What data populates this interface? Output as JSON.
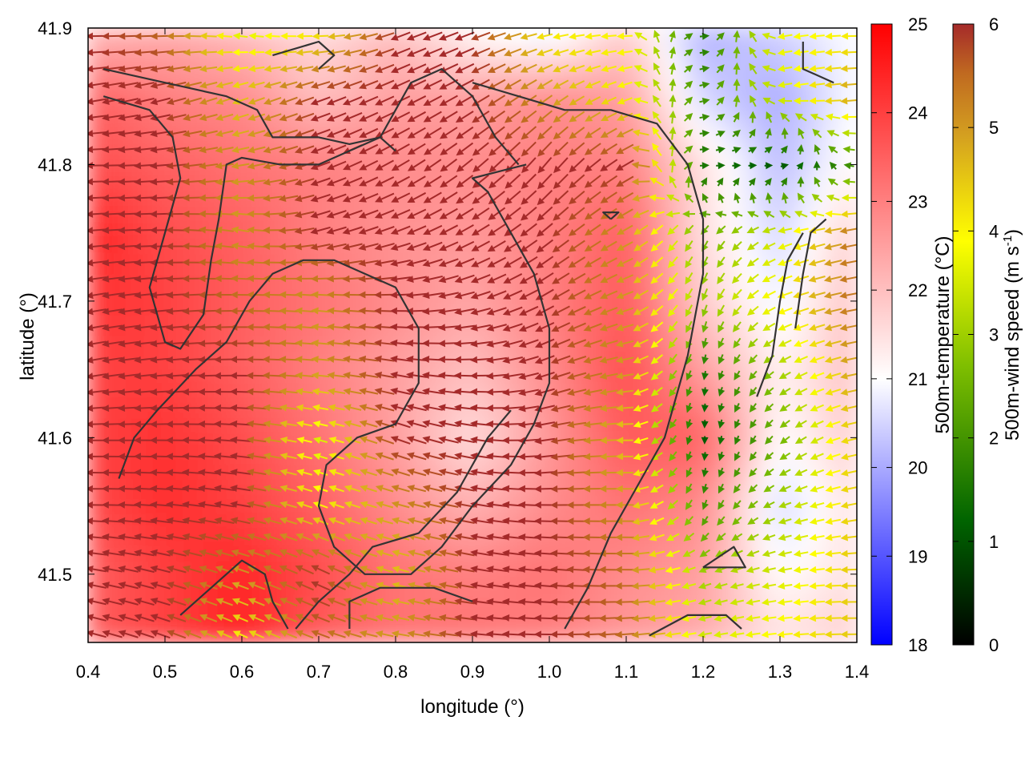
{
  "chart_data": {
    "type": "heatmap",
    "xlabel": "longitude (°)",
    "ylabel": "latitude (°)",
    "xlim": [
      0.4,
      1.4
    ],
    "ylim": [
      41.45,
      41.9
    ],
    "x_ticks": [
      "0.4",
      "0.5",
      "0.6",
      "0.7",
      "0.8",
      "0.9",
      "1.0",
      "1.1",
      "1.2",
      "1.3",
      "1.4"
    ],
    "y_ticks": [
      "41.5",
      "41.6",
      "41.7",
      "41.8",
      "41.9"
    ],
    "grid": false,
    "temperature_colorbar": {
      "label": "500m-temperature (°C)",
      "range": [
        18,
        25
      ],
      "ticks": [
        "18",
        "19",
        "20",
        "21",
        "22",
        "23",
        "24",
        "25"
      ],
      "colors": [
        "#0000ff",
        "#ffffff",
        "#ff0000"
      ]
    },
    "wind_colorbar": {
      "label_main": "500m-wind speed (m s",
      "label_sup": "-1",
      "label_end": ")",
      "range": [
        0,
        6
      ],
      "ticks": [
        "0",
        "1",
        "2",
        "3",
        "4",
        "5",
        "6"
      ],
      "colors": [
        "#000000",
        "#006400",
        "#7fbf00",
        "#ffff00",
        "#d4a020",
        "#c06a20",
        "#a52a2a"
      ]
    },
    "temperature_field": {
      "description_units": "°C",
      "x": [
        0.4,
        0.5,
        0.6,
        0.7,
        0.8,
        0.9,
        1.0,
        1.1,
        1.2,
        1.3,
        1.4
      ],
      "y": [
        41.9,
        41.85,
        41.8,
        41.75,
        41.7,
        41.65,
        41.6,
        41.55,
        41.5,
        41.45
      ],
      "values": [
        [
          22.0,
          22.3,
          22.0,
          21.5,
          22.0,
          21.0,
          20.5,
          21.8,
          20.0,
          20.5,
          21.0
        ],
        [
          23.5,
          23.0,
          22.8,
          22.0,
          22.5,
          22.5,
          22.8,
          22.5,
          20.5,
          20.0,
          21.0
        ],
        [
          23.8,
          23.5,
          23.2,
          23.0,
          22.8,
          22.8,
          23.0,
          23.0,
          21.5,
          20.2,
          21.2
        ],
        [
          24.5,
          23.8,
          23.5,
          23.0,
          22.7,
          22.6,
          23.0,
          23.5,
          21.5,
          20.5,
          21.8
        ],
        [
          24.2,
          24.0,
          23.5,
          23.2,
          22.8,
          22.4,
          23.0,
          23.6,
          21.8,
          20.8,
          22.0
        ],
        [
          24.0,
          24.0,
          23.5,
          23.0,
          22.5,
          22.0,
          22.8,
          23.8,
          22.5,
          21.2,
          22.0
        ],
        [
          24.0,
          24.2,
          23.8,
          23.2,
          22.5,
          21.5,
          22.6,
          23.6,
          23.5,
          21.0,
          21.8
        ],
        [
          23.8,
          24.3,
          24.0,
          23.5,
          22.8,
          22.2,
          22.8,
          23.2,
          22.8,
          20.5,
          21.5
        ],
        [
          23.5,
          24.0,
          24.4,
          23.8,
          23.2,
          23.0,
          23.2,
          22.8,
          22.5,
          21.0,
          21.5
        ],
        [
          23.5,
          24.0,
          24.5,
          23.5,
          23.2,
          23.2,
          23.0,
          22.6,
          22.3,
          21.5,
          21.8
        ]
      ]
    },
    "wind_field": {
      "description_units": "m s-1",
      "x": [
        0.4,
        0.5,
        0.6,
        0.7,
        0.8,
        0.9,
        1.0,
        1.1,
        1.2,
        1.3,
        1.4
      ],
      "y": [
        41.9,
        41.85,
        41.8,
        41.75,
        41.7,
        41.65,
        41.6,
        41.55,
        41.5,
        41.45
      ],
      "speed": [
        [
          6.0,
          5.5,
          3.5,
          4.0,
          6.0,
          6.0,
          4.0,
          4.0,
          1.5,
          3.8,
          4.0
        ],
        [
          6.0,
          6.0,
          4.5,
          6.0,
          6.0,
          6.0,
          5.0,
          4.0,
          2.0,
          3.5,
          5.0
        ],
        [
          6.0,
          6.0,
          5.0,
          6.0,
          6.0,
          6.0,
          6.0,
          6.0,
          1.5,
          1.0,
          2.0
        ],
        [
          6.0,
          6.0,
          5.0,
          6.0,
          6.0,
          6.0,
          6.0,
          5.0,
          2.5,
          3.5,
          5.5
        ],
        [
          6.0,
          6.0,
          5.5,
          5.0,
          6.0,
          6.0,
          6.0,
          5.0,
          3.0,
          4.0,
          5.5
        ],
        [
          6.0,
          6.0,
          6.0,
          5.0,
          6.0,
          6.0,
          6.0,
          5.0,
          1.5,
          3.0,
          5.0
        ],
        [
          6.0,
          6.0,
          6.0,
          3.5,
          6.0,
          6.0,
          6.0,
          4.5,
          1.0,
          2.5,
          4.5
        ],
        [
          6.0,
          6.0,
          6.0,
          4.0,
          5.0,
          6.0,
          6.0,
          5.0,
          2.0,
          3.0,
          4.5
        ],
        [
          6.0,
          6.0,
          5.0,
          6.0,
          4.5,
          6.0,
          6.0,
          5.5,
          3.0,
          3.5,
          4.5
        ],
        [
          6.0,
          6.0,
          4.0,
          5.5,
          5.0,
          6.0,
          6.0,
          5.5,
          3.5,
          4.0,
          4.5
        ]
      ],
      "direction_deg": [
        [
          180,
          180,
          170,
          180,
          200,
          200,
          190,
          180,
          0,
          190,
          180
        ],
        [
          190,
          195,
          200,
          200,
          205,
          210,
          215,
          200,
          10,
          190,
          185
        ],
        [
          180,
          185,
          190,
          200,
          210,
          220,
          230,
          210,
          0,
          0,
          190
        ],
        [
          185,
          180,
          170,
          195,
          200,
          210,
          220,
          210,
          240,
          200,
          190
        ],
        [
          190,
          185,
          180,
          175,
          180,
          195,
          210,
          200,
          250,
          200,
          190
        ],
        [
          190,
          185,
          180,
          175,
          170,
          180,
          200,
          190,
          260,
          210,
          190
        ],
        [
          180,
          180,
          175,
          165,
          160,
          170,
          190,
          180,
          270,
          220,
          190
        ],
        [
          180,
          175,
          170,
          160,
          165,
          170,
          180,
          180,
          250,
          200,
          190
        ],
        [
          170,
          165,
          160,
          155,
          165,
          170,
          175,
          180,
          200,
          190,
          180
        ],
        [
          165,
          160,
          155,
          160,
          170,
          175,
          180,
          185,
          190,
          185,
          180
        ]
      ]
    }
  }
}
